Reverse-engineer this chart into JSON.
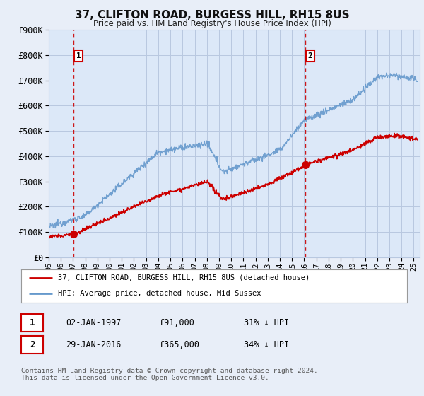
{
  "title": "37, CLIFTON ROAD, BURGESS HILL, RH15 8US",
  "subtitle": "Price paid vs. HM Land Registry's House Price Index (HPI)",
  "ylim": [
    0,
    900000
  ],
  "xlim_start": 1995.0,
  "xlim_end": 2025.5,
  "sale1_x": 1997.04,
  "sale1_y": 91000,
  "sale1_label": "1",
  "sale1_date": "02-JAN-1997",
  "sale1_price": "£91,000",
  "sale1_hpi": "31% ↓ HPI",
  "sale2_x": 2016.08,
  "sale2_y": 365000,
  "sale2_label": "2",
  "sale2_date": "29-JAN-2016",
  "sale2_price": "£365,000",
  "sale2_hpi": "34% ↓ HPI",
  "legend_line1": "37, CLIFTON ROAD, BURGESS HILL, RH15 8US (detached house)",
  "legend_line2": "HPI: Average price, detached house, Mid Sussex",
  "footer": "Contains HM Land Registry data © Crown copyright and database right 2024.\nThis data is licensed under the Open Government Licence v3.0.",
  "bg_color": "#dce8f8",
  "plot_bg_color": "#dce8f8",
  "grid_color": "#b8c8e0",
  "hpi_color": "#6699cc",
  "price_color": "#cc0000",
  "dashed_line_color": "#cc0000",
  "outer_bg": "#e8eef8"
}
